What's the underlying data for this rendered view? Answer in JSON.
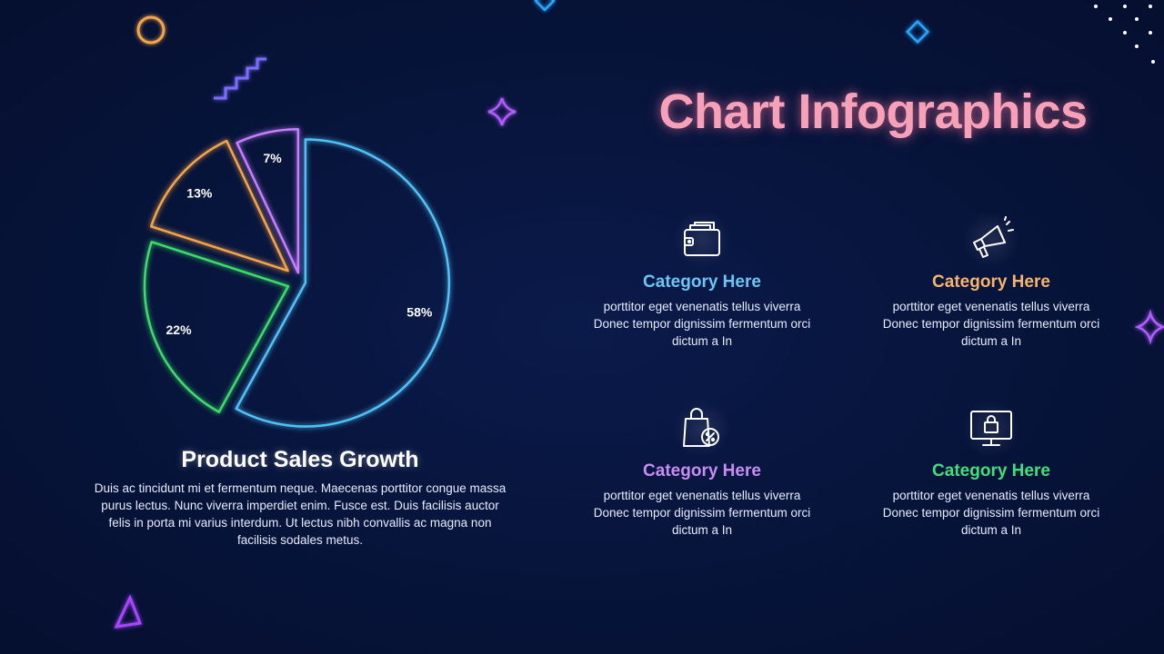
{
  "title": "Chart Infographics",
  "colors": {
    "background": "#06123a",
    "title": "#f7a1b8",
    "blue": "#4fc3f7",
    "orange": "#f5a54a",
    "purple": "#c77dff",
    "green": "#3ddc6a"
  },
  "chart_data": {
    "type": "pie",
    "title": "Product Sales Growth",
    "slices": [
      {
        "label": "58%",
        "value": 58,
        "color": "#4fc3f7"
      },
      {
        "label": "22%",
        "value": 22,
        "color": "#3ddc6a"
      },
      {
        "label": "13%",
        "value": 13,
        "color": "#f5a54a"
      },
      {
        "label": "7%",
        "value": 7,
        "color": "#c77dff"
      }
    ]
  },
  "chart_description": "Duis ac tincidunt mi et fermentum neque. Maecenas porttitor congue massa purus lectus. Nunc viverra imperdiet enim. Fusce est. Duis facilisis auctor felis in porta mi varius interdum. Ut lectus nibh convallis ac magna non facilisis sodales metus.",
  "categories": [
    {
      "title": "Category Here",
      "text": "porttitor eget venenatis tellus viverra Donec tempor dignissim fermentum orci dictum a In",
      "color": "#6cc6f5",
      "icon": "wallet-icon"
    },
    {
      "title": "Category Here",
      "text": "porttitor eget venenatis tellus viverra Donec tempor dignissim fermentum orci dictum a In",
      "color": "#f8b46a",
      "icon": "megaphone-icon"
    },
    {
      "title": "Category Here",
      "text": "porttitor eget venenatis tellus viverra Donec tempor dignissim fermentum orci dictum a In",
      "color": "#c98cf5",
      "icon": "shopping-bag-discount-icon"
    },
    {
      "title": "Category Here",
      "text": "porttitor eget venenatis tellus viverra Donec tempor dignissim fermentum orci dictum a In",
      "color": "#3fe07a",
      "icon": "monitor-shopping-icon"
    }
  ]
}
